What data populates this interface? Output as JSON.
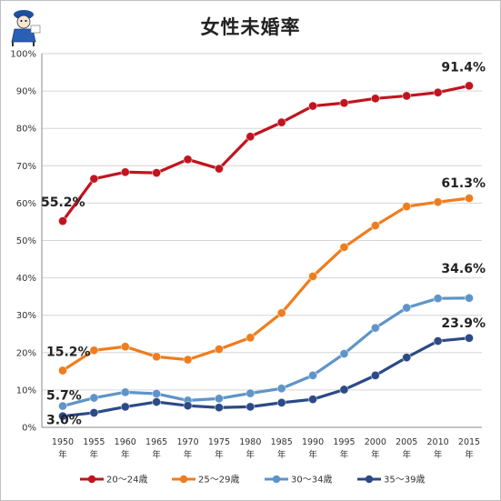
{
  "chart_data": {
    "type": "line",
    "title": "女性未婚率",
    "x": [
      "1950",
      "1955",
      "1960",
      "1965",
      "1970",
      "1975",
      "1980",
      "1985",
      "1990",
      "1995",
      "2000",
      "2005",
      "2010",
      "2015"
    ],
    "x_suffix": "年",
    "ylim": [
      0,
      100
    ],
    "y_ticks": [
      "0%",
      "10%",
      "20%",
      "30%",
      "40%",
      "50%",
      "60%",
      "70%",
      "80%",
      "90%",
      "100%"
    ],
    "grid": true,
    "legend_position": "bottom",
    "series": [
      {
        "name": "20～24歳",
        "color": "#c0141f",
        "values": [
          55.2,
          66.5,
          68.3,
          68.1,
          71.7,
          69.2,
          77.8,
          81.6,
          86.0,
          86.8,
          88.0,
          88.7,
          89.6,
          91.4
        ]
      },
      {
        "name": "25～29歳",
        "color": "#ee7d1f",
        "values": [
          15.2,
          20.6,
          21.6,
          18.9,
          18.1,
          20.9,
          24.0,
          30.6,
          40.4,
          48.2,
          54.0,
          59.1,
          60.3,
          61.3
        ]
      },
      {
        "name": "30～34歳",
        "color": "#5e94c9",
        "values": [
          5.7,
          7.9,
          9.4,
          9.0,
          7.2,
          7.7,
          9.1,
          10.4,
          13.9,
          19.7,
          26.6,
          32.0,
          34.5,
          34.6
        ]
      },
      {
        "name": "35～39歳",
        "color": "#2b4a86",
        "values": [
          3.0,
          3.9,
          5.5,
          6.8,
          5.8,
          5.3,
          5.5,
          6.6,
          7.5,
          10.1,
          13.9,
          18.7,
          23.1,
          23.9
        ]
      }
    ],
    "annotations": [
      {
        "text": "91.4%",
        "series": 0,
        "index": 13
      },
      {
        "text": "61.3%",
        "series": 1,
        "index": 13
      },
      {
        "text": "34.6%",
        "series": 2,
        "index": 13
      },
      {
        "text": "23.9%",
        "series": 3,
        "index": 13
      },
      {
        "text": "55.2%",
        "series": 0,
        "index": 0
      },
      {
        "text": "15.2%",
        "series": 1,
        "index": 0
      },
      {
        "text": "5.7%",
        "series": 2,
        "index": 0
      },
      {
        "text": "3.0%",
        "series": 3,
        "index": 0
      }
    ]
  }
}
